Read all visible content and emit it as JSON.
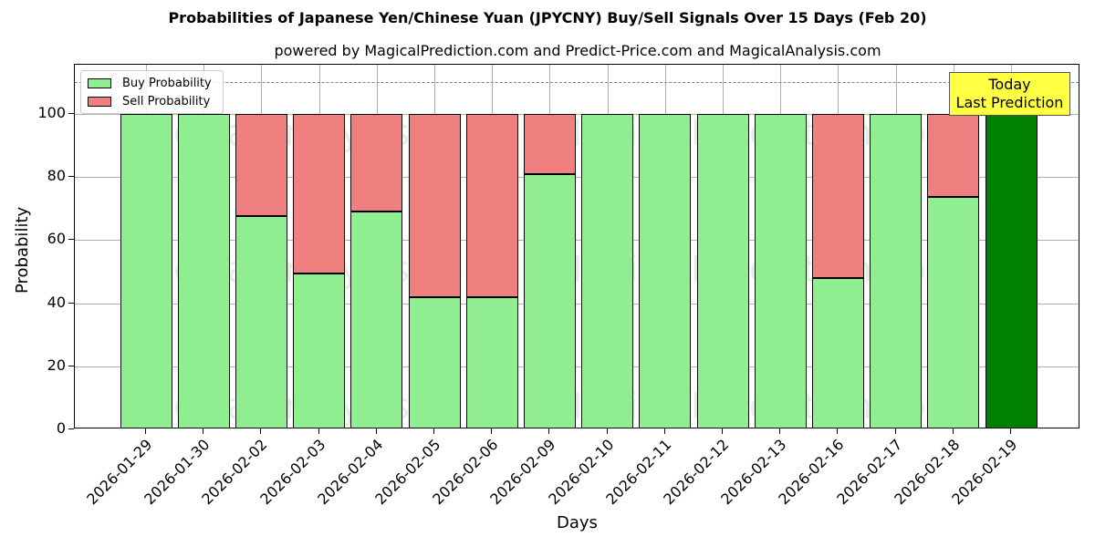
{
  "chart_data": {
    "type": "bar",
    "stacked": true,
    "title": "Probabilities of Japanese Yen/Chinese Yuan (JPYCNY) Buy/Sell Signals Over 15 Days (Feb 20)",
    "subtitle": "powered by MagicalPrediction.com and Predict-Price.com and MagicalAnalysis.com",
    "xlabel": "Days",
    "ylabel": "Probability",
    "ylim": [
      0,
      115
    ],
    "yticks": [
      0,
      20,
      40,
      60,
      80,
      100
    ],
    "grid": true,
    "legend_position": "upper left",
    "reference_line": {
      "y": 110,
      "style": "dashed",
      "color": "#808080"
    },
    "categories": [
      "2026-01-29",
      "2026-01-30",
      "2026-02-02",
      "2026-02-03",
      "2026-02-04",
      "2026-02-05",
      "2026-02-06",
      "2026-02-09",
      "2026-02-10",
      "2026-02-11",
      "2026-02-12",
      "2026-02-13",
      "2026-02-16",
      "2026-02-17",
      "2026-02-18",
      "2026-02-19"
    ],
    "series": [
      {
        "name": "Buy Probability",
        "color": "#90ee90",
        "values": [
          100,
          100,
          67.6,
          49.4,
          69.1,
          41.9,
          41.9,
          80.9,
          100,
          100,
          100,
          100,
          48.0,
          100,
          73.7,
          100
        ]
      },
      {
        "name": "Sell Probability",
        "color": "#f08080",
        "values": [
          0,
          0,
          32.4,
          50.6,
          30.9,
          58.1,
          58.1,
          19.1,
          0,
          0,
          0,
          0,
          52.0,
          0,
          26.3,
          0
        ]
      }
    ],
    "highlight": {
      "index": 15,
      "color": "#008000",
      "label": "Today\nLast Prediction"
    },
    "annotation": {
      "line1": "Today",
      "line2": "Last Prediction",
      "background": "#ffff44"
    },
    "watermarks": [
      "MagicalAnalysis.com",
      "MagicalPrediction.com"
    ]
  },
  "legend": {
    "buy_label": "Buy Probability",
    "sell_label": "Sell Probability"
  }
}
